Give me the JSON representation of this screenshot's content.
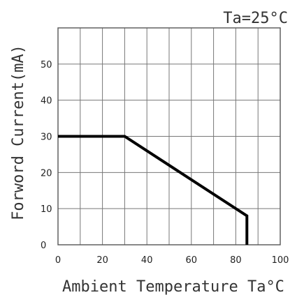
{
  "chart_data": {
    "type": "line",
    "title": "",
    "annotation": "Ta=25°C",
    "xlabel": "Ambient Temperature Ta°C",
    "ylabel": "Forword Current(mA)",
    "xlim": [
      0,
      100
    ],
    "ylim": [
      0,
      60
    ],
    "x_ticks": [
      "0",
      "20",
      "40",
      "60",
      "80",
      "100"
    ],
    "y_ticks": [
      "0",
      "10",
      "20",
      "30",
      "40",
      "50"
    ],
    "grid": true,
    "series": [
      {
        "x": [
          0,
          30,
          85,
          85
        ],
        "y": [
          30,
          30,
          8,
          0
        ]
      }
    ]
  }
}
